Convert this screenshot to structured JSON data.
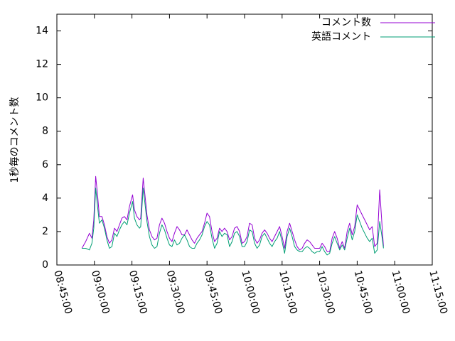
{
  "chart_data": {
    "type": "line",
    "title": "",
    "xlabel": "",
    "ylabel": "1秒毎のコメント数",
    "ylim": [
      0,
      15
    ],
    "y_ticks": [
      "0",
      "2",
      "4",
      "6",
      "8",
      "10",
      "12",
      "14"
    ],
    "x_ticks": [
      "08:45:00",
      "09:00:00",
      "09:15:00",
      "09:30:00",
      "09:45:00",
      "10:00:00",
      "10:15:00",
      "10:30:00",
      "10:45:00",
      "11:00:00",
      "11:15:00"
    ],
    "xlim": [
      "08:45:00",
      "11:15:00"
    ],
    "grid": false,
    "legend": "top-right",
    "series": [
      {
        "name": "コメント数",
        "color": "#9400d3",
        "points": [
          [
            "08:55:00",
            1.0
          ],
          [
            "08:56:30",
            1.4
          ],
          [
            "08:58:00",
            1.9
          ],
          [
            "08:59:00",
            1.6
          ],
          [
            "08:59:45",
            2.7
          ],
          [
            "09:00:30",
            5.3
          ],
          [
            "09:01:15",
            4.2
          ],
          [
            "09:02:00",
            2.9
          ],
          [
            "09:03:00",
            2.9
          ],
          [
            "09:04:00",
            2.4
          ],
          [
            "09:05:00",
            1.7
          ],
          [
            "09:06:00",
            1.3
          ],
          [
            "09:07:00",
            1.5
          ],
          [
            "09:08:00",
            2.2
          ],
          [
            "09:09:00",
            2.0
          ],
          [
            "09:10:00",
            2.4
          ],
          [
            "09:11:00",
            2.8
          ],
          [
            "09:12:00",
            2.9
          ],
          [
            "09:13:00",
            2.7
          ],
          [
            "09:14:00",
            3.5
          ],
          [
            "09:15:15",
            4.2
          ],
          [
            "09:16:00",
            3.3
          ],
          [
            "09:17:00",
            2.9
          ],
          [
            "09:18:00",
            2.7
          ],
          [
            "09:18:30",
            2.8
          ],
          [
            "09:19:30",
            5.2
          ],
          [
            "09:20:15",
            4.1
          ],
          [
            "09:21:00",
            3.0
          ],
          [
            "09:22:00",
            2.1
          ],
          [
            "09:23:00",
            1.7
          ],
          [
            "09:24:00",
            1.5
          ],
          [
            "09:25:00",
            1.6
          ],
          [
            "09:26:00",
            2.4
          ],
          [
            "09:27:00",
            2.8
          ],
          [
            "09:28:00",
            2.5
          ],
          [
            "09:29:00",
            2.0
          ],
          [
            "09:30:00",
            1.6
          ],
          [
            "09:31:00",
            1.4
          ],
          [
            "09:32:00",
            1.9
          ],
          [
            "09:33:00",
            2.3
          ],
          [
            "09:34:00",
            2.1
          ],
          [
            "09:35:00",
            1.8
          ],
          [
            "09:36:00",
            1.8
          ],
          [
            "09:37:00",
            2.1
          ],
          [
            "09:38:00",
            1.8
          ],
          [
            "09:39:00",
            1.5
          ],
          [
            "09:40:00",
            1.3
          ],
          [
            "09:41:00",
            1.6
          ],
          [
            "09:42:00",
            1.8
          ],
          [
            "09:43:00",
            2.0
          ],
          [
            "09:44:00",
            2.5
          ],
          [
            "09:45:00",
            3.1
          ],
          [
            "09:46:00",
            2.9
          ],
          [
            "09:47:00",
            2.0
          ],
          [
            "09:48:00",
            1.4
          ],
          [
            "09:49:00",
            1.6
          ],
          [
            "09:50:00",
            2.2
          ],
          [
            "09:51:00",
            2.0
          ],
          [
            "09:52:00",
            2.2
          ],
          [
            "09:53:00",
            2.0
          ],
          [
            "09:54:00",
            1.5
          ],
          [
            "09:55:00",
            1.7
          ],
          [
            "09:56:00",
            2.2
          ],
          [
            "09:57:00",
            2.3
          ],
          [
            "09:58:00",
            2.0
          ],
          [
            "09:59:00",
            1.3
          ],
          [
            "10:00:00",
            1.4
          ],
          [
            "10:01:00",
            1.7
          ],
          [
            "10:02:00",
            2.5
          ],
          [
            "10:03:00",
            2.4
          ],
          [
            "10:04:00",
            1.6
          ],
          [
            "10:05:00",
            1.3
          ],
          [
            "10:06:00",
            1.5
          ],
          [
            "10:07:00",
            1.9
          ],
          [
            "10:08:00",
            2.1
          ],
          [
            "10:09:00",
            1.9
          ],
          [
            "10:10:00",
            1.6
          ],
          [
            "10:11:00",
            1.4
          ],
          [
            "10:12:00",
            1.7
          ],
          [
            "10:13:00",
            2.0
          ],
          [
            "10:14:00",
            2.3
          ],
          [
            "10:15:00",
            1.7
          ],
          [
            "10:16:00",
            1.0
          ],
          [
            "10:17:00",
            2.0
          ],
          [
            "10:18:00",
            2.5
          ],
          [
            "10:19:00",
            2.0
          ],
          [
            "10:20:00",
            1.5
          ],
          [
            "10:21:00",
            1.1
          ],
          [
            "10:22:00",
            0.9
          ],
          [
            "10:23:00",
            1.0
          ],
          [
            "10:24:00",
            1.3
          ],
          [
            "10:25:00",
            1.5
          ],
          [
            "10:26:00",
            1.4
          ],
          [
            "10:27:00",
            1.2
          ],
          [
            "10:28:00",
            1.0
          ],
          [
            "10:29:00",
            1.0
          ],
          [
            "10:30:00",
            1.0
          ],
          [
            "10:31:00",
            1.3
          ],
          [
            "10:32:00",
            1.1
          ],
          [
            "10:33:00",
            0.8
          ],
          [
            "10:34:00",
            0.8
          ],
          [
            "10:35:00",
            1.6
          ],
          [
            "10:36:00",
            2.0
          ],
          [
            "10:37:00",
            1.6
          ],
          [
            "10:38:00",
            1.0
          ],
          [
            "10:39:00",
            1.4
          ],
          [
            "10:40:00",
            1.0
          ],
          [
            "10:41:00",
            2.0
          ],
          [
            "10:42:00",
            2.5
          ],
          [
            "10:43:00",
            1.8
          ],
          [
            "10:44:00",
            2.3
          ],
          [
            "10:45:00",
            3.6
          ],
          [
            "10:46:00",
            3.3
          ],
          [
            "10:47:00",
            3.0
          ],
          [
            "10:48:00",
            2.7
          ],
          [
            "10:49:00",
            2.4
          ],
          [
            "10:50:00",
            2.1
          ],
          [
            "10:51:00",
            2.3
          ],
          [
            "10:52:00",
            1.1
          ],
          [
            "10:53:00",
            1.3
          ],
          [
            "10:54:00",
            4.5
          ],
          [
            "10:55:00",
            2.2
          ],
          [
            "10:55:30",
            1.1
          ]
        ]
      },
      {
        "name": "英語コメント",
        "color": "#009e73",
        "points": [
          [
            "08:55:00",
            1.0
          ],
          [
            "08:56:30",
            1.0
          ],
          [
            "08:58:00",
            0.9
          ],
          [
            "08:59:00",
            1.3
          ],
          [
            "08:59:45",
            2.2
          ],
          [
            "09:00:30",
            4.6
          ],
          [
            "09:01:15",
            3.5
          ],
          [
            "09:02:00",
            2.5
          ],
          [
            "09:03:00",
            2.7
          ],
          [
            "09:04:00",
            2.2
          ],
          [
            "09:05:00",
            1.5
          ],
          [
            "09:06:00",
            1.0
          ],
          [
            "09:07:00",
            1.1
          ],
          [
            "09:08:00",
            1.9
          ],
          [
            "09:09:00",
            1.7
          ],
          [
            "09:10:00",
            2.1
          ],
          [
            "09:11:00",
            2.4
          ],
          [
            "09:12:00",
            2.6
          ],
          [
            "09:13:00",
            2.4
          ],
          [
            "09:14:00",
            3.1
          ],
          [
            "09:15:15",
            3.8
          ],
          [
            "09:16:00",
            2.8
          ],
          [
            "09:17:00",
            2.4
          ],
          [
            "09:18:00",
            2.2
          ],
          [
            "09:18:30",
            2.3
          ],
          [
            "09:19:30",
            4.6
          ],
          [
            "09:20:15",
            3.6
          ],
          [
            "09:21:00",
            2.6
          ],
          [
            "09:22:00",
            1.7
          ],
          [
            "09:23:00",
            1.2
          ],
          [
            "09:24:00",
            1.0
          ],
          [
            "09:25:00",
            1.1
          ],
          [
            "09:26:00",
            1.9
          ],
          [
            "09:27:00",
            2.4
          ],
          [
            "09:28:00",
            2.1
          ],
          [
            "09:29:00",
            1.6
          ],
          [
            "09:30:00",
            1.2
          ],
          [
            "09:31:00",
            1.1
          ],
          [
            "09:32:00",
            1.5
          ],
          [
            "09:33:00",
            1.2
          ],
          [
            "09:34:00",
            1.3
          ],
          [
            "09:35:00",
            1.6
          ],
          [
            "09:36:00",
            1.8
          ],
          [
            "09:37:00",
            1.5
          ],
          [
            "09:38:00",
            1.1
          ],
          [
            "09:39:00",
            1.0
          ],
          [
            "09:40:00",
            1.0
          ],
          [
            "09:41:00",
            1.3
          ],
          [
            "09:42:00",
            1.5
          ],
          [
            "09:43:00",
            1.8
          ],
          [
            "09:44:00",
            2.3
          ],
          [
            "09:45:00",
            2.6
          ],
          [
            "09:46:00",
            2.4
          ],
          [
            "09:47:00",
            1.6
          ],
          [
            "09:48:00",
            1.0
          ],
          [
            "09:49:00",
            1.3
          ],
          [
            "09:50:00",
            2.0
          ],
          [
            "09:51:00",
            1.7
          ],
          [
            "09:52:00",
            1.9
          ],
          [
            "09:53:00",
            1.8
          ],
          [
            "09:54:00",
            1.1
          ],
          [
            "09:55:00",
            1.4
          ],
          [
            "09:56:00",
            1.9
          ],
          [
            "09:57:00",
            2.0
          ],
          [
            "09:58:00",
            1.7
          ],
          [
            "09:59:00",
            1.1
          ],
          [
            "10:00:00",
            1.1
          ],
          [
            "10:01:00",
            1.4
          ],
          [
            "10:02:00",
            2.1
          ],
          [
            "10:03:00",
            2.0
          ],
          [
            "10:04:00",
            1.3
          ],
          [
            "10:05:00",
            1.0
          ],
          [
            "10:06:00",
            1.2
          ],
          [
            "10:07:00",
            1.7
          ],
          [
            "10:08:00",
            1.9
          ],
          [
            "10:09:00",
            1.6
          ],
          [
            "10:10:00",
            1.3
          ],
          [
            "10:11:00",
            1.1
          ],
          [
            "10:12:00",
            1.4
          ],
          [
            "10:13:00",
            1.6
          ],
          [
            "10:14:00",
            2.0
          ],
          [
            "10:15:00",
            1.4
          ],
          [
            "10:16:00",
            0.7
          ],
          [
            "10:17:00",
            1.7
          ],
          [
            "10:18:00",
            2.2
          ],
          [
            "10:19:00",
            1.7
          ],
          [
            "10:20:00",
            1.1
          ],
          [
            "10:21:00",
            0.9
          ],
          [
            "10:22:00",
            0.8
          ],
          [
            "10:23:00",
            0.8
          ],
          [
            "10:24:00",
            1.0
          ],
          [
            "10:25:00",
            1.1
          ],
          [
            "10:26:00",
            1.0
          ],
          [
            "10:27:00",
            0.8
          ],
          [
            "10:28:00",
            0.7
          ],
          [
            "10:29:00",
            0.8
          ],
          [
            "10:30:00",
            0.8
          ],
          [
            "10:31:00",
            1.1
          ],
          [
            "10:32:00",
            0.8
          ],
          [
            "10:33:00",
            0.6
          ],
          [
            "10:34:00",
            0.7
          ],
          [
            "10:35:00",
            1.3
          ],
          [
            "10:36:00",
            1.7
          ],
          [
            "10:37:00",
            1.3
          ],
          [
            "10:38:00",
            0.9
          ],
          [
            "10:39:00",
            1.2
          ],
          [
            "10:40:00",
            0.9
          ],
          [
            "10:41:00",
            1.6
          ],
          [
            "10:42:00",
            2.2
          ],
          [
            "10:43:00",
            1.5
          ],
          [
            "10:44:00",
            2.0
          ],
          [
            "10:45:00",
            3.0
          ],
          [
            "10:46:00",
            2.6
          ],
          [
            "10:47:00",
            2.2
          ],
          [
            "10:48:00",
            1.9
          ],
          [
            "10:49:00",
            1.6
          ],
          [
            "10:50:00",
            1.4
          ],
          [
            "10:51:00",
            1.6
          ],
          [
            "10:52:00",
            0.7
          ],
          [
            "10:53:00",
            0.9
          ],
          [
            "10:54:00",
            2.6
          ],
          [
            "10:55:00",
            1.6
          ],
          [
            "10:55:30",
            1.0
          ]
        ]
      }
    ]
  }
}
